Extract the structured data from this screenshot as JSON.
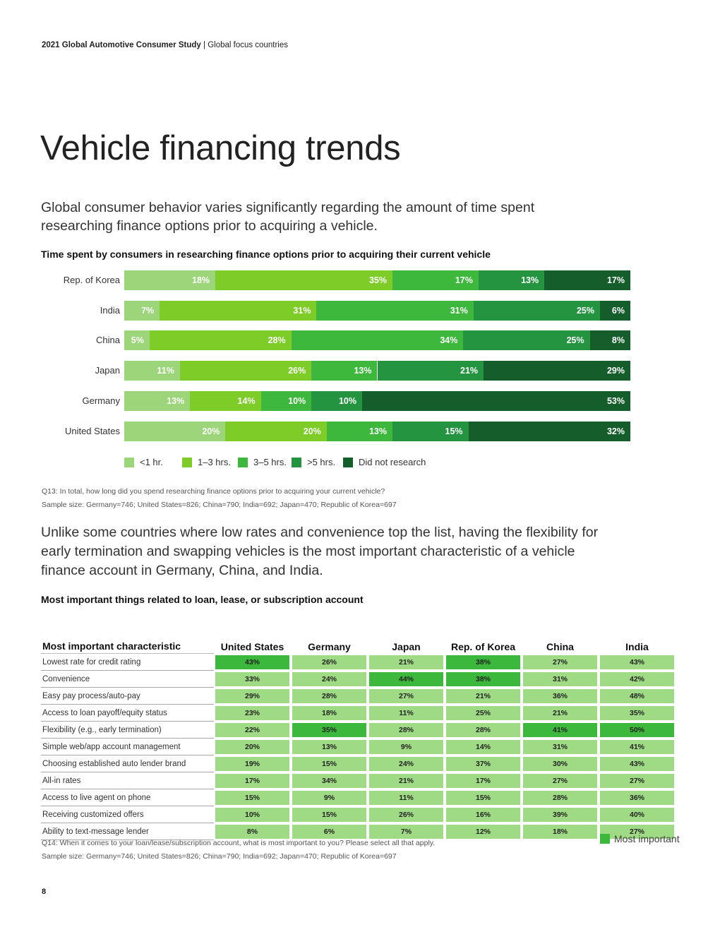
{
  "header": {
    "report": "2021 Global Automotive Consumer Study",
    "section": "Global focus countries"
  },
  "title": "Vehicle financing trends",
  "lead1": "Global consumer behavior varies significantly regarding the amount of time spent researching finance options prior to acquiring a vehicle.",
  "chart_data": {
    "type": "bar",
    "orientation": "horizontal",
    "stacked": true,
    "title": "Time spent by consumers in researching finance options prior to acquiring their current vehicle",
    "categories": [
      "Rep. of Korea",
      "India",
      "China",
      "Japan",
      "Germany",
      "United States"
    ],
    "series": [
      {
        "name": "<1 hr.",
        "color": "#9dd67a",
        "values": [
          18,
          7,
          5,
          11,
          13,
          20
        ]
      },
      {
        "name": "1–3 hrs.",
        "color": "#7dcc28",
        "values": [
          35,
          31,
          28,
          26,
          14,
          20
        ]
      },
      {
        "name": "3–5 hrs.",
        "color": "#3db83d",
        "values": [
          17,
          31,
          34,
          13,
          10,
          13
        ]
      },
      {
        "name": ">5 hrs.",
        "color": "#249441",
        "values": [
          13,
          25,
          25,
          21,
          10,
          15
        ]
      },
      {
        "name": "Did not research",
        "color": "#155e2c",
        "values": [
          17,
          6,
          8,
          29,
          53,
          32
        ]
      }
    ],
    "value_suffix": "%",
    "legend": "bottom-left"
  },
  "note1": {
    "question": "Q13: In total, how long did you spend researching finance options prior to acquiring your current vehicle?",
    "sample": "Sample size: Germany=746; United States=826; China=790; India=692; Japan=470; Republic of Korea=697"
  },
  "lead2": "Unlike some countries where low rates and convenience top the list, having the flexibility for early termination and swapping vehicles is the most important characteristic of a vehicle finance account in Germany, China, and India.",
  "table": {
    "title": "Most important things related to loan, lease, or subscription account",
    "header": "Most important characteristic",
    "columns": [
      "United States",
      "Germany",
      "Japan",
      "Rep. of Korea",
      "China",
      "India"
    ],
    "rows": [
      {
        "label": "Lowest rate for credit rating",
        "values": [
          "43%",
          "26%",
          "21%",
          "38%",
          "27%",
          "43%"
        ],
        "highlight": [
          true,
          false,
          false,
          true,
          false,
          false
        ]
      },
      {
        "label": "Convenience",
        "values": [
          "33%",
          "24%",
          "44%",
          "38%",
          "31%",
          "42%"
        ],
        "highlight": [
          false,
          false,
          true,
          true,
          false,
          false
        ]
      },
      {
        "label": "Easy pay process/auto-pay",
        "values": [
          "29%",
          "28%",
          "27%",
          "21%",
          "36%",
          "48%"
        ],
        "highlight": [
          false,
          false,
          false,
          false,
          false,
          false
        ]
      },
      {
        "label": "Access to loan payoff/equity status",
        "values": [
          "23%",
          "18%",
          "11%",
          "25%",
          "21%",
          "35%"
        ],
        "highlight": [
          false,
          false,
          false,
          false,
          false,
          false
        ]
      },
      {
        "label": "Flexibility (e.g., early termination)",
        "values": [
          "22%",
          "35%",
          "28%",
          "28%",
          "41%",
          "50%"
        ],
        "highlight": [
          false,
          true,
          false,
          false,
          true,
          true
        ]
      },
      {
        "label": "Simple web/app account management",
        "values": [
          "20%",
          "13%",
          "9%",
          "14%",
          "31%",
          "41%"
        ],
        "highlight": [
          false,
          false,
          false,
          false,
          false,
          false
        ]
      },
      {
        "label": "Choosing established auto lender brand",
        "values": [
          "19%",
          "15%",
          "24%",
          "37%",
          "30%",
          "43%"
        ],
        "highlight": [
          false,
          false,
          false,
          false,
          false,
          false
        ]
      },
      {
        "label": "All-in rates",
        "values": [
          "17%",
          "34%",
          "21%",
          "17%",
          "27%",
          "27%"
        ],
        "highlight": [
          false,
          false,
          false,
          false,
          false,
          false
        ]
      },
      {
        "label": "Access to live agent on phone",
        "values": [
          "15%",
          "9%",
          "11%",
          "15%",
          "28%",
          "36%"
        ],
        "highlight": [
          false,
          false,
          false,
          false,
          false,
          false
        ]
      },
      {
        "label": "Receiving customized offers",
        "values": [
          "10%",
          "15%",
          "26%",
          "16%",
          "39%",
          "40%"
        ],
        "highlight": [
          false,
          false,
          false,
          false,
          false,
          false
        ]
      },
      {
        "label": "Ability to text-message lender",
        "values": [
          "8%",
          "6%",
          "7%",
          "12%",
          "18%",
          "27%"
        ],
        "highlight": [
          false,
          false,
          false,
          false,
          false,
          false
        ]
      }
    ],
    "colors": {
      "normal": "#9fdb85",
      "highlight": "#3cb83c"
    },
    "legend": "Most important"
  },
  "note2": {
    "question": "Q14: When it comes to your loan/lease/subscription account, what is most important to you? Please select all that apply.",
    "sample": "Sample size: Germany=746; United States=826; China=790; India=692; Japan=470; Republic of Korea=697"
  },
  "page_number": "8"
}
